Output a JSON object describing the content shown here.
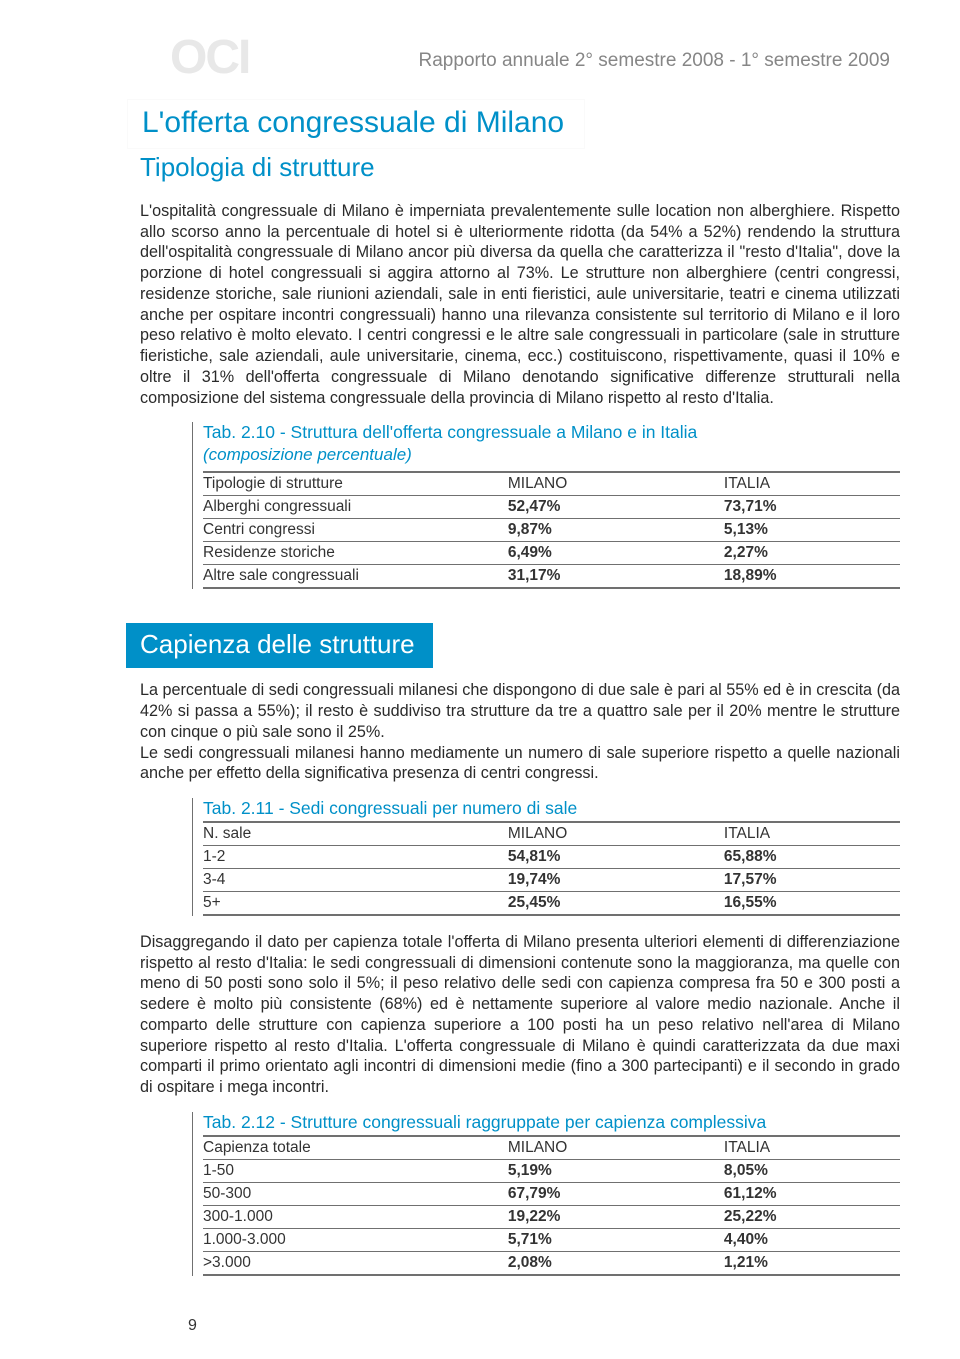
{
  "colors": {
    "accent": "#0090c8",
    "text": "#2a2a2a",
    "muted": "#868686",
    "rule": "#707070",
    "logo": "#e8e8e8",
    "bg": "#ffffff"
  },
  "logo_text": "OCI",
  "report_header": "Rapporto annuale 2° semestre 2008 - 1° semestre 2009",
  "section1": {
    "title": "L'offerta congressuale di Milano",
    "subtitle": "Tipologia di strutture",
    "para": "L'ospitalità congressuale di Milano è imperniata prevalentemente sulle location non alberghiere. Rispetto allo scorso anno la percentuale di hotel si è ulteriormente ridotta (da 54% a 52%) rendendo la struttura dell'ospitalità congressuale di Milano ancor più diversa da quella che caratterizza il \"resto d'Italia\", dove la porzione di hotel congressuali si aggira attorno al 73%. Le strutture non alberghiere (centri congressi, residenze storiche, sale riunioni aziendali, sale in enti fieristici, aule universitarie, teatri e cinema utilizzati anche per ospitare incontri congressuali) hanno una rilevanza consistente sul territorio di Milano e il loro peso relativo è molto elevato. I centri congressi e le altre sale congressuali in particolare (sale in strutture fieristiche, sale aziendali, aule universitarie, cinema, ecc.) costituiscono, rispettivamente, quasi il 10% e oltre il 31% dell'offerta congressuale di Milano denotando significative differenze strutturali nella composizione del sistema congressuale della provincia di Milano rispetto al resto d'Italia."
  },
  "table210": {
    "title": "Tab. 2.10 - Struttura dell'offerta congressuale a Milano e in Italia",
    "subtitle": "(composizione percentuale)",
    "col_headers": [
      "Tipologie di strutture",
      "MILANO",
      "ITALIA"
    ],
    "rows": [
      [
        "Alberghi congressuali",
        "52,47%",
        "73,71%"
      ],
      [
        "Centri congressi",
        "9,87%",
        "5,13%"
      ],
      [
        "Residenze storiche",
        "6,49%",
        "2,27%"
      ],
      [
        "Altre sale congressuali",
        "31,17%",
        "18,89%"
      ]
    ]
  },
  "section2": {
    "title": "Capienza delle strutture",
    "para": "La percentuale di sedi congressuali milanesi che dispongono di due sale è pari al 55% ed è in crescita (da 42% si passa a 55%); il resto è suddiviso tra strutture da tre a quattro sale per il 20% mentre le strutture con cinque o più sale sono il 25%.\nLe sedi congressuali milanesi hanno mediamente un numero di sale superiore rispetto a quelle nazionali anche per effetto della significativa presenza di centri congressi."
  },
  "table211": {
    "title": "Tab. 2.11 - Sedi congressuali per numero di sale",
    "col_headers": [
      "N. sale",
      "MILANO",
      "ITALIA"
    ],
    "rows": [
      [
        "1-2",
        "54,81%",
        "65,88%"
      ],
      [
        "3-4",
        "19,74%",
        "17,57%"
      ],
      [
        "5+",
        "25,45%",
        "16,55%"
      ]
    ]
  },
  "section3": {
    "para": "Disaggregando il dato per capienza totale l'offerta di Milano presenta ulteriori elementi di differenziazione rispetto al resto d'Italia: le sedi congressuali di dimensioni contenute sono la maggioranza, ma quelle con meno di 50 posti sono solo il 5%; il peso relativo delle sedi con capienza compresa fra 50 e 300 posti a sedere è molto più consistente (68%) ed è nettamente superiore al valore medio nazionale. Anche il comparto delle strutture con capienza superiore a 100 posti ha un peso relativo nell'area di Milano superiore rispetto al resto d'Italia. L'offerta congressuale di Milano è quindi caratterizzata da due maxi comparti il primo orientato agli incontri di dimensioni medie (fino a 300 partecipanti) e il secondo in grado di ospitare i mega incontri."
  },
  "table212": {
    "title": "Tab. 2.12 - Strutture congressuali raggruppate per capienza complessiva",
    "col_headers": [
      "Capienza totale",
      "MILANO",
      "ITALIA"
    ],
    "rows": [
      [
        "1-50",
        "5,19%",
        "8,05%"
      ],
      [
        "50-300",
        "67,79%",
        "61,12%"
      ],
      [
        "300-1.000",
        "19,22%",
        "25,22%"
      ],
      [
        "1.000-3.000",
        "5,71%",
        "4,40%"
      ],
      [
        ">3.000",
        "2,08%",
        "1,21%"
      ]
    ]
  },
  "page_number": "9"
}
